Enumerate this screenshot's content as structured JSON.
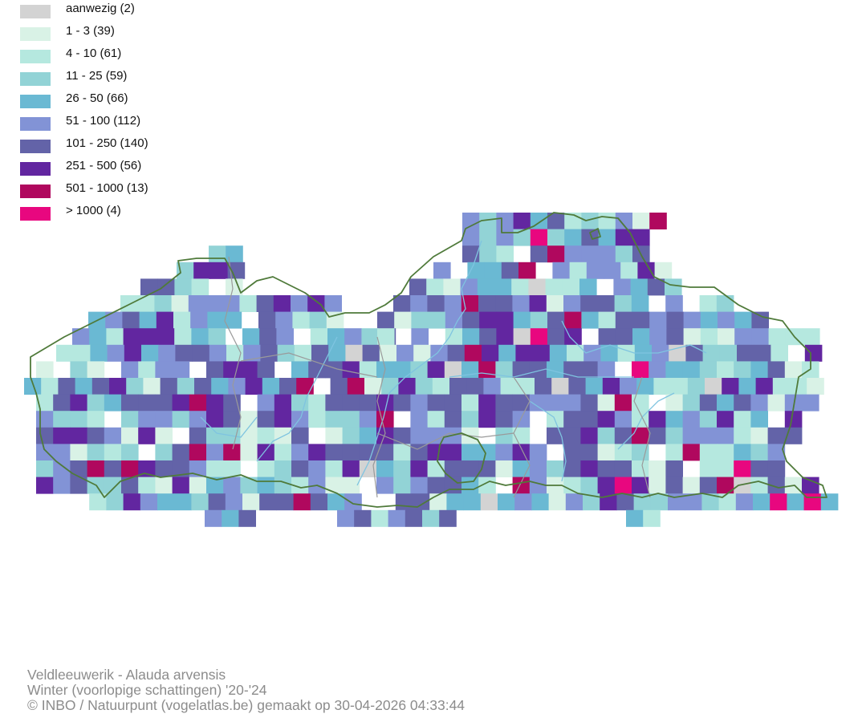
{
  "legend": {
    "items": [
      {
        "label": "aanwezig (2)",
        "color": "#d3d3d3"
      },
      {
        "label": "1 - 3 (39)",
        "color": "#d9f2e6"
      },
      {
        "label": "4 - 10 (61)",
        "color": "#b5e8df"
      },
      {
        "label": "11 - 25 (59)",
        "color": "#92d3d6"
      },
      {
        "label": "26 - 50 (66)",
        "color": "#6ab9d3"
      },
      {
        "label": "51 - 100 (112)",
        "color": "#8293d6"
      },
      {
        "label": "101 - 250 (140)",
        "color": "#6363a8"
      },
      {
        "label": "251 - 500 (56)",
        "color": "#6226a0"
      },
      {
        "label": "501 - 1000 (13)",
        "color": "#b0085e"
      },
      {
        "label": "> 1000 (4)",
        "color": "#e8077f"
      }
    ]
  },
  "map": {
    "border_color": "#4f7a3a",
    "river_color": "#7fc4e0",
    "province_color": "#9a9a9a"
  },
  "caption": {
    "species": "Veldleeuwerik - Alauda arvensis",
    "period": "Winter (voorlopige schattingen) '20-'24",
    "credit": "© INBO / Natuurpunt (vogelatlas.be) gemaakt op 30-04-2026 04:33:44"
  }
}
